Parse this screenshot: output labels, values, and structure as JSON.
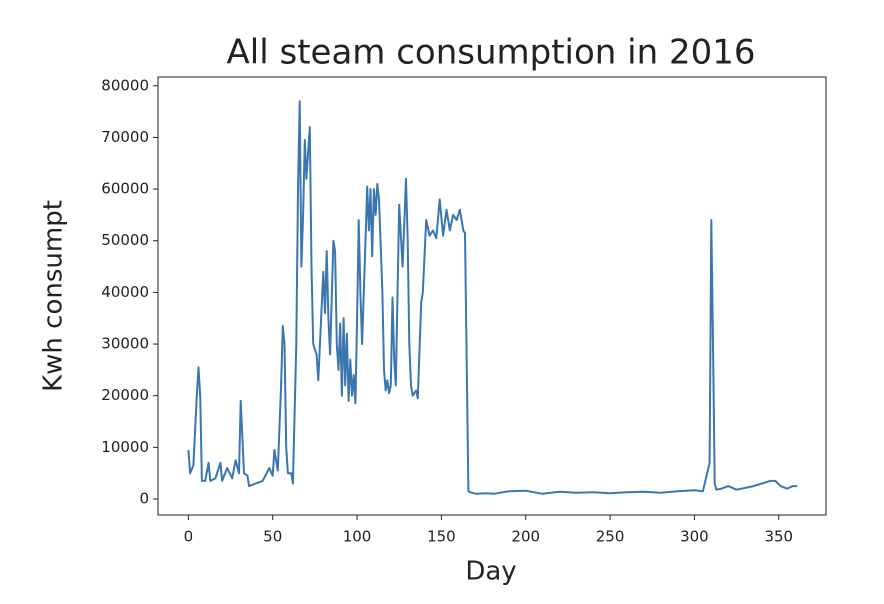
{
  "chart_data": {
    "type": "line",
    "title": "All steam consumption in 2016",
    "xlabel": "Day",
    "ylabel": "Kwh consumpt",
    "color": "#3a76b0",
    "x": [
      0,
      1,
      3,
      5,
      6,
      7,
      8,
      10,
      12,
      13,
      16,
      19,
      20,
      23,
      26,
      28,
      30,
      31,
      33,
      35,
      36,
      40,
      44,
      48,
      50,
      51,
      53,
      55,
      56,
      57,
      58,
      59,
      61,
      62,
      64,
      65,
      66,
      67,
      68,
      69,
      70,
      71,
      72,
      73,
      74,
      76,
      77,
      79,
      80,
      81,
      82,
      83,
      84,
      86,
      87,
      88,
      89,
      90,
      91,
      92,
      93,
      94,
      95,
      96,
      97,
      98,
      99,
      100,
      101,
      102,
      103,
      105,
      106,
      107,
      108,
      109,
      110,
      111,
      112,
      113,
      115,
      116,
      117,
      118,
      119,
      120,
      121,
      122,
      123,
      125,
      127,
      129,
      130,
      131,
      132,
      133,
      135,
      136,
      138,
      139,
      141,
      143,
      145,
      147,
      149,
      151,
      153,
      155,
      157,
      159,
      161,
      163,
      164,
      166,
      168,
      171,
      176,
      181,
      190,
      200,
      210,
      220,
      230,
      240,
      250,
      260,
      270,
      280,
      290,
      300,
      305,
      309,
      310,
      311,
      312,
      313,
      316,
      320,
      325,
      335,
      340,
      345,
      348,
      351,
      355,
      358,
      361
    ],
    "values": [
      9500,
      5000,
      6500,
      20000,
      25500,
      20000,
      3500,
      3500,
      7000,
      3500,
      4000,
      7000,
      3500,
      6000,
      4000,
      7500,
      5000,
      19000,
      5000,
      4500,
      2500,
      3000,
      3500,
      6000,
      4500,
      9500,
      5500,
      22000,
      33500,
      30000,
      10000,
      5000,
      5000,
      3000,
      30000,
      60000,
      77000,
      45000,
      55000,
      69500,
      62000,
      67000,
      72000,
      45000,
      30000,
      28000,
      23000,
      37000,
      44000,
      36000,
      48000,
      35000,
      28000,
      50000,
      48000,
      30000,
      25000,
      34000,
      20000,
      35000,
      22000,
      32000,
      19000,
      27000,
      20000,
      24000,
      18500,
      35000,
      54000,
      40000,
      30000,
      50000,
      60500,
      52000,
      60000,
      47000,
      60000,
      55000,
      61000,
      58000,
      40000,
      25000,
      21000,
      23000,
      20500,
      22000,
      39000,
      27000,
      22000,
      57000,
      45000,
      62000,
      50000,
      30000,
      22000,
      20000,
      21000,
      19500,
      38000,
      40000,
      54000,
      51000,
      52000,
      50500,
      58000,
      51000,
      56000,
      52000,
      55000,
      54000,
      56000,
      52000,
      51500,
      1500,
      1200,
      1000,
      1100,
      1000,
      1500,
      1600,
      1000,
      1400,
      1200,
      1300,
      1100,
      1300,
      1400,
      1200,
      1500,
      1700,
      1500,
      7000,
      54000,
      30000,
      3000,
      1800,
      2000,
      2500,
      1800,
      2500,
      3000,
      3500,
      3500,
      2500,
      2000,
      2500,
      2500
    ],
    "xlim": [
      -18,
      378
    ],
    "xticks": [
      0,
      50,
      100,
      150,
      200,
      250,
      300,
      350
    ],
    "ylim": [
      -3100,
      81700
    ],
    "yticks": [
      0,
      10000,
      20000,
      30000,
      40000,
      50000,
      60000,
      70000,
      80000
    ]
  }
}
